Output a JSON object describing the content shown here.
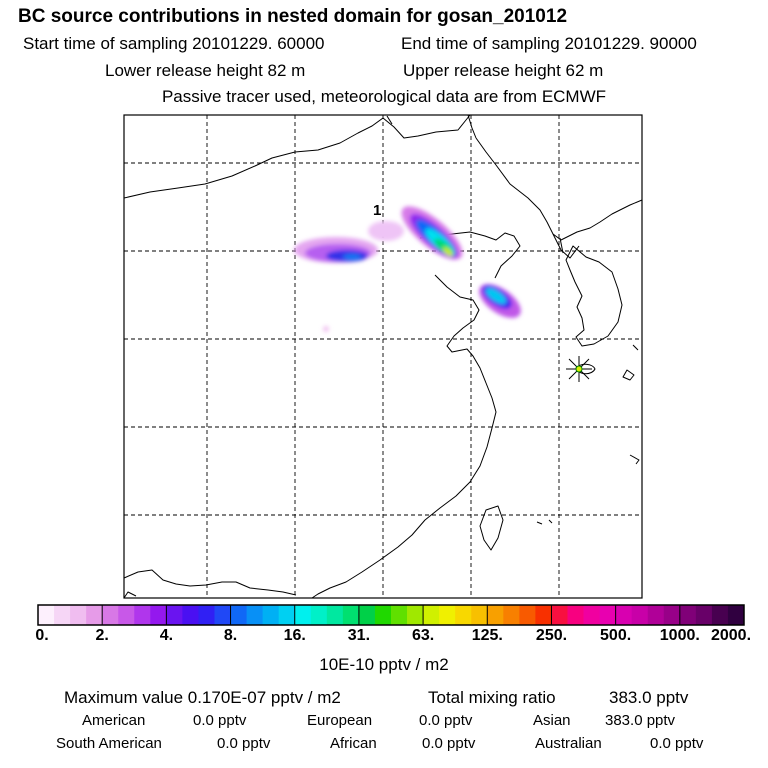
{
  "header": {
    "title": "BC  source contributions in nested domain for gosan_201012",
    "start_label": "Start time of sampling 20101229. 60000",
    "end_label": "End time of sampling 20101229. 90000",
    "lower_label": "Lower release height   82 m",
    "upper_label": "Upper release height   62 m",
    "tracer_note": "Passive tracer used, meteorological data are from ECMWF"
  },
  "map": {
    "release_marker_label": "1",
    "receptor_marker": "star-icon"
  },
  "colorbar": {
    "ticks": [
      "0.",
      "2.",
      "4.",
      "8.",
      "16.",
      "31.",
      "63.",
      "125.",
      "250.",
      "500.",
      "1000.",
      "2000."
    ],
    "colors": [
      "#fdf0fd",
      "#f6d6f6",
      "#f0bdf0",
      "#e69be8",
      "#d878e6",
      "#c858e8",
      "#b036ec",
      "#9418ee",
      "#6a14f0",
      "#4a10f2",
      "#3020f4",
      "#2048f6",
      "#1068f6",
      "#0890f6",
      "#00b0f4",
      "#00d0f2",
      "#00f0ee",
      "#00f0c8",
      "#00e8a0",
      "#00e070",
      "#00d048",
      "#20d800",
      "#60e000",
      "#a0e800",
      "#d0f000",
      "#f0f000",
      "#f8d800",
      "#f8c000",
      "#f8a000",
      "#f88000",
      "#f85a00",
      "#f83000",
      "#f81040",
      "#f80080",
      "#f000a0",
      "#e800b0",
      "#d800b0",
      "#c800a8",
      "#b00098",
      "#980088",
      "#800078",
      "#680068",
      "#480050",
      "#300040"
    ],
    "units": "10E-10 pptv / m2"
  },
  "summary": {
    "max_label": "Maximum value  0.170E-07 pptv / m2",
    "total_label": "Total mixing ratio",
    "total_value": "383.0 pptv",
    "regions": [
      {
        "name": "American",
        "value": "0.0 pptv"
      },
      {
        "name": "European",
        "value": "0.0 pptv"
      },
      {
        "name": "Asian",
        "value": "383.0 pptv"
      },
      {
        "name": "South American",
        "value": "0.0 pptv"
      },
      {
        "name": "African",
        "value": "0.0 pptv"
      },
      {
        "name": "Australian",
        "value": "0.0 pptv"
      }
    ]
  }
}
